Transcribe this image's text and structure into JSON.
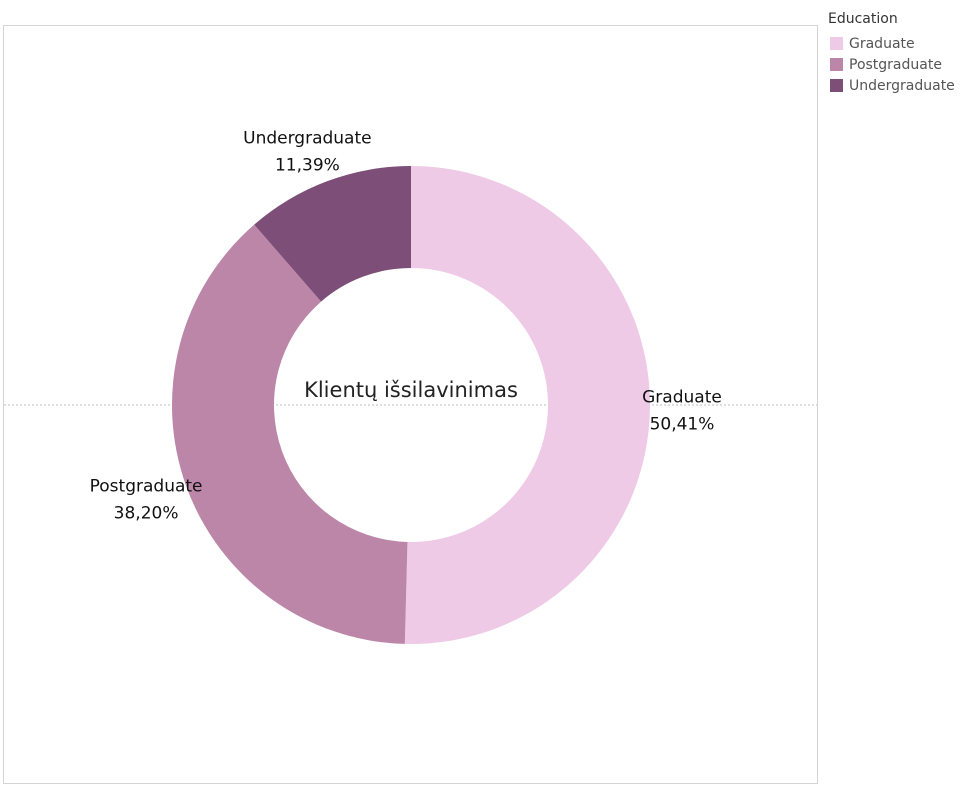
{
  "chart_data": {
    "type": "pie",
    "donut": true,
    "center_title": "Klientų išsilavinimas",
    "categories": [
      "Graduate",
      "Postgraduate",
      "Undergraduate"
    ],
    "values": [
      50.41,
      38.2,
      11.39
    ],
    "value_labels": [
      "50,41%",
      "38,20%",
      "11,39%"
    ],
    "colors": [
      "#efcae6",
      "#bc86a8",
      "#7d4e78"
    ],
    "start": "12 o'clock",
    "direction": "clockwise",
    "legend": {
      "title": "Education",
      "position": "top-right",
      "items": [
        {
          "label": "Graduate",
          "color": "#efcae6"
        },
        {
          "label": "Postgraduate",
          "color": "#bc86a8"
        },
        {
          "label": "Undergraduate",
          "color": "#7d4e78"
        }
      ]
    }
  }
}
